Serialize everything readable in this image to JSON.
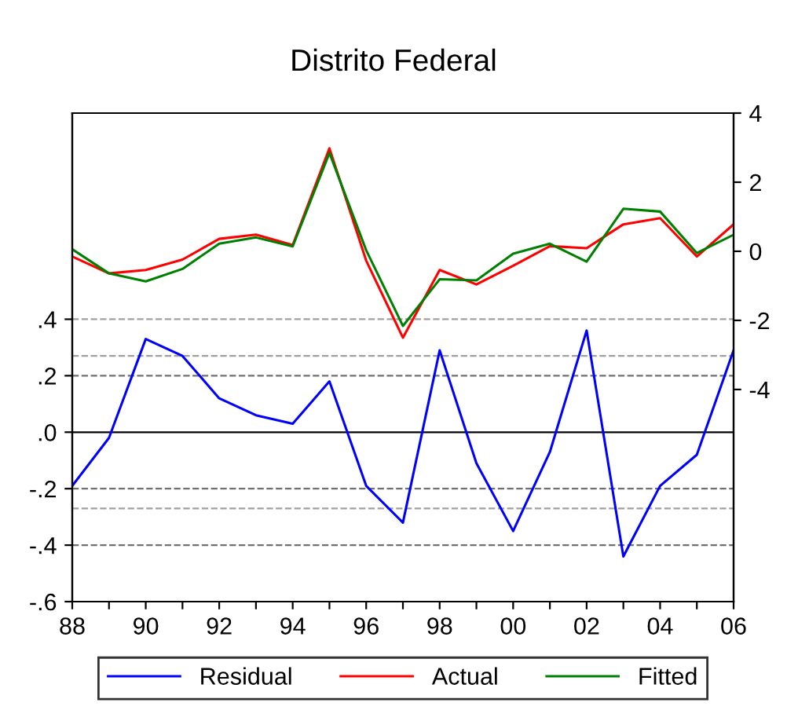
{
  "chart_data": {
    "type": "line",
    "title": "Distrito Federal",
    "x": [
      1988,
      1989,
      1990,
      1991,
      1992,
      1993,
      1994,
      1995,
      1996,
      1997,
      1998,
      1999,
      2000,
      2001,
      2002,
      2003,
      2004,
      2005,
      2006
    ],
    "series": [
      {
        "name": "Residual",
        "color": "#0000ff",
        "values": [
          -0.19,
          -0.02,
          0.33,
          0.27,
          0.12,
          0.06,
          0.03,
          0.18,
          -0.19,
          -0.32,
          0.29,
          -0.11,
          -0.35,
          -0.07,
          0.36,
          -0.44,
          -0.19,
          -0.08,
          0.29
        ]
      },
      {
        "name": "Actual",
        "color": "#ff0000",
        "axis": "y2",
        "values": [
          -0.15,
          -0.64,
          -0.54,
          -0.24,
          0.36,
          0.48,
          0.18,
          2.98,
          -0.27,
          -2.5,
          -0.54,
          -0.96,
          -0.42,
          0.15,
          0.09,
          0.78,
          0.96,
          -0.15,
          0.78
        ]
      },
      {
        "name": "Fitted",
        "color": "#008000",
        "axis": "y2",
        "values": [
          0.06,
          -0.64,
          -0.87,
          -0.51,
          0.22,
          0.4,
          0.14,
          2.85,
          0.03,
          -2.16,
          -0.81,
          -0.84,
          -0.07,
          0.22,
          -0.3,
          1.23,
          1.15,
          -0.05,
          0.48
        ]
      }
    ],
    "xlim": [
      1988,
      2006
    ],
    "xticks": [
      {
        "value": 1988,
        "label": "88"
      },
      {
        "value": 1989,
        "label": null
      },
      {
        "value": 1990,
        "label": "90"
      },
      {
        "value": 1991,
        "label": null
      },
      {
        "value": 1992,
        "label": "92"
      },
      {
        "value": 1993,
        "label": null
      },
      {
        "value": 1994,
        "label": "94"
      },
      {
        "value": 1995,
        "label": null
      },
      {
        "value": 1996,
        "label": "96"
      },
      {
        "value": 1997,
        "label": null
      },
      {
        "value": 1998,
        "label": "98"
      },
      {
        "value": 1999,
        "label": null
      },
      {
        "value": 2000,
        "label": "00"
      },
      {
        "value": 2001,
        "label": null
      },
      {
        "value": 2002,
        "label": "02"
      },
      {
        "value": 2003,
        "label": null
      },
      {
        "value": 2004,
        "label": "04"
      },
      {
        "value": 2005,
        "label": null
      },
      {
        "value": 2006,
        "label": "06"
      }
    ],
    "ylim": [
      -0.6,
      1.13
    ],
    "yticks": [
      {
        "value": 0.4,
        "label": ".4"
      },
      {
        "value": 0.2,
        "label": ".2"
      },
      {
        "value": 0,
        "label": ".0"
      },
      {
        "value": -0.2,
        "label": "-.2"
      },
      {
        "value": -0.4,
        "label": "-.4"
      },
      {
        "value": -0.6,
        "label": "-.6"
      }
    ],
    "y2lim": [
      -10.14,
      4
    ],
    "y2ticks": [
      4,
      2,
      0,
      -2,
      -4
    ],
    "ref_lines": [
      {
        "axis": "y",
        "value": 0,
        "color": "#000000",
        "line_style": "solid"
      },
      {
        "axis": "y",
        "value": 0.4,
        "color": "#a0a0a0",
        "line_style": "dashed"
      },
      {
        "axis": "y",
        "value": 0.27,
        "color": "#a0a0a0",
        "line_style": "dashed"
      },
      {
        "axis": "y",
        "value": 0.2,
        "color": "#707070",
        "line_style": "dashed"
      },
      {
        "axis": "y",
        "value": -0.2,
        "color": "#707070",
        "line_style": "dashed"
      },
      {
        "axis": "y",
        "value": -0.27,
        "color": "#a0a0a0",
        "line_style": "dashed"
      },
      {
        "axis": "y",
        "value": -0.4,
        "color": "#707070",
        "line_style": "dashed"
      }
    ],
    "legend": "bottom",
    "line_style": "solid",
    "marker": "none"
  }
}
